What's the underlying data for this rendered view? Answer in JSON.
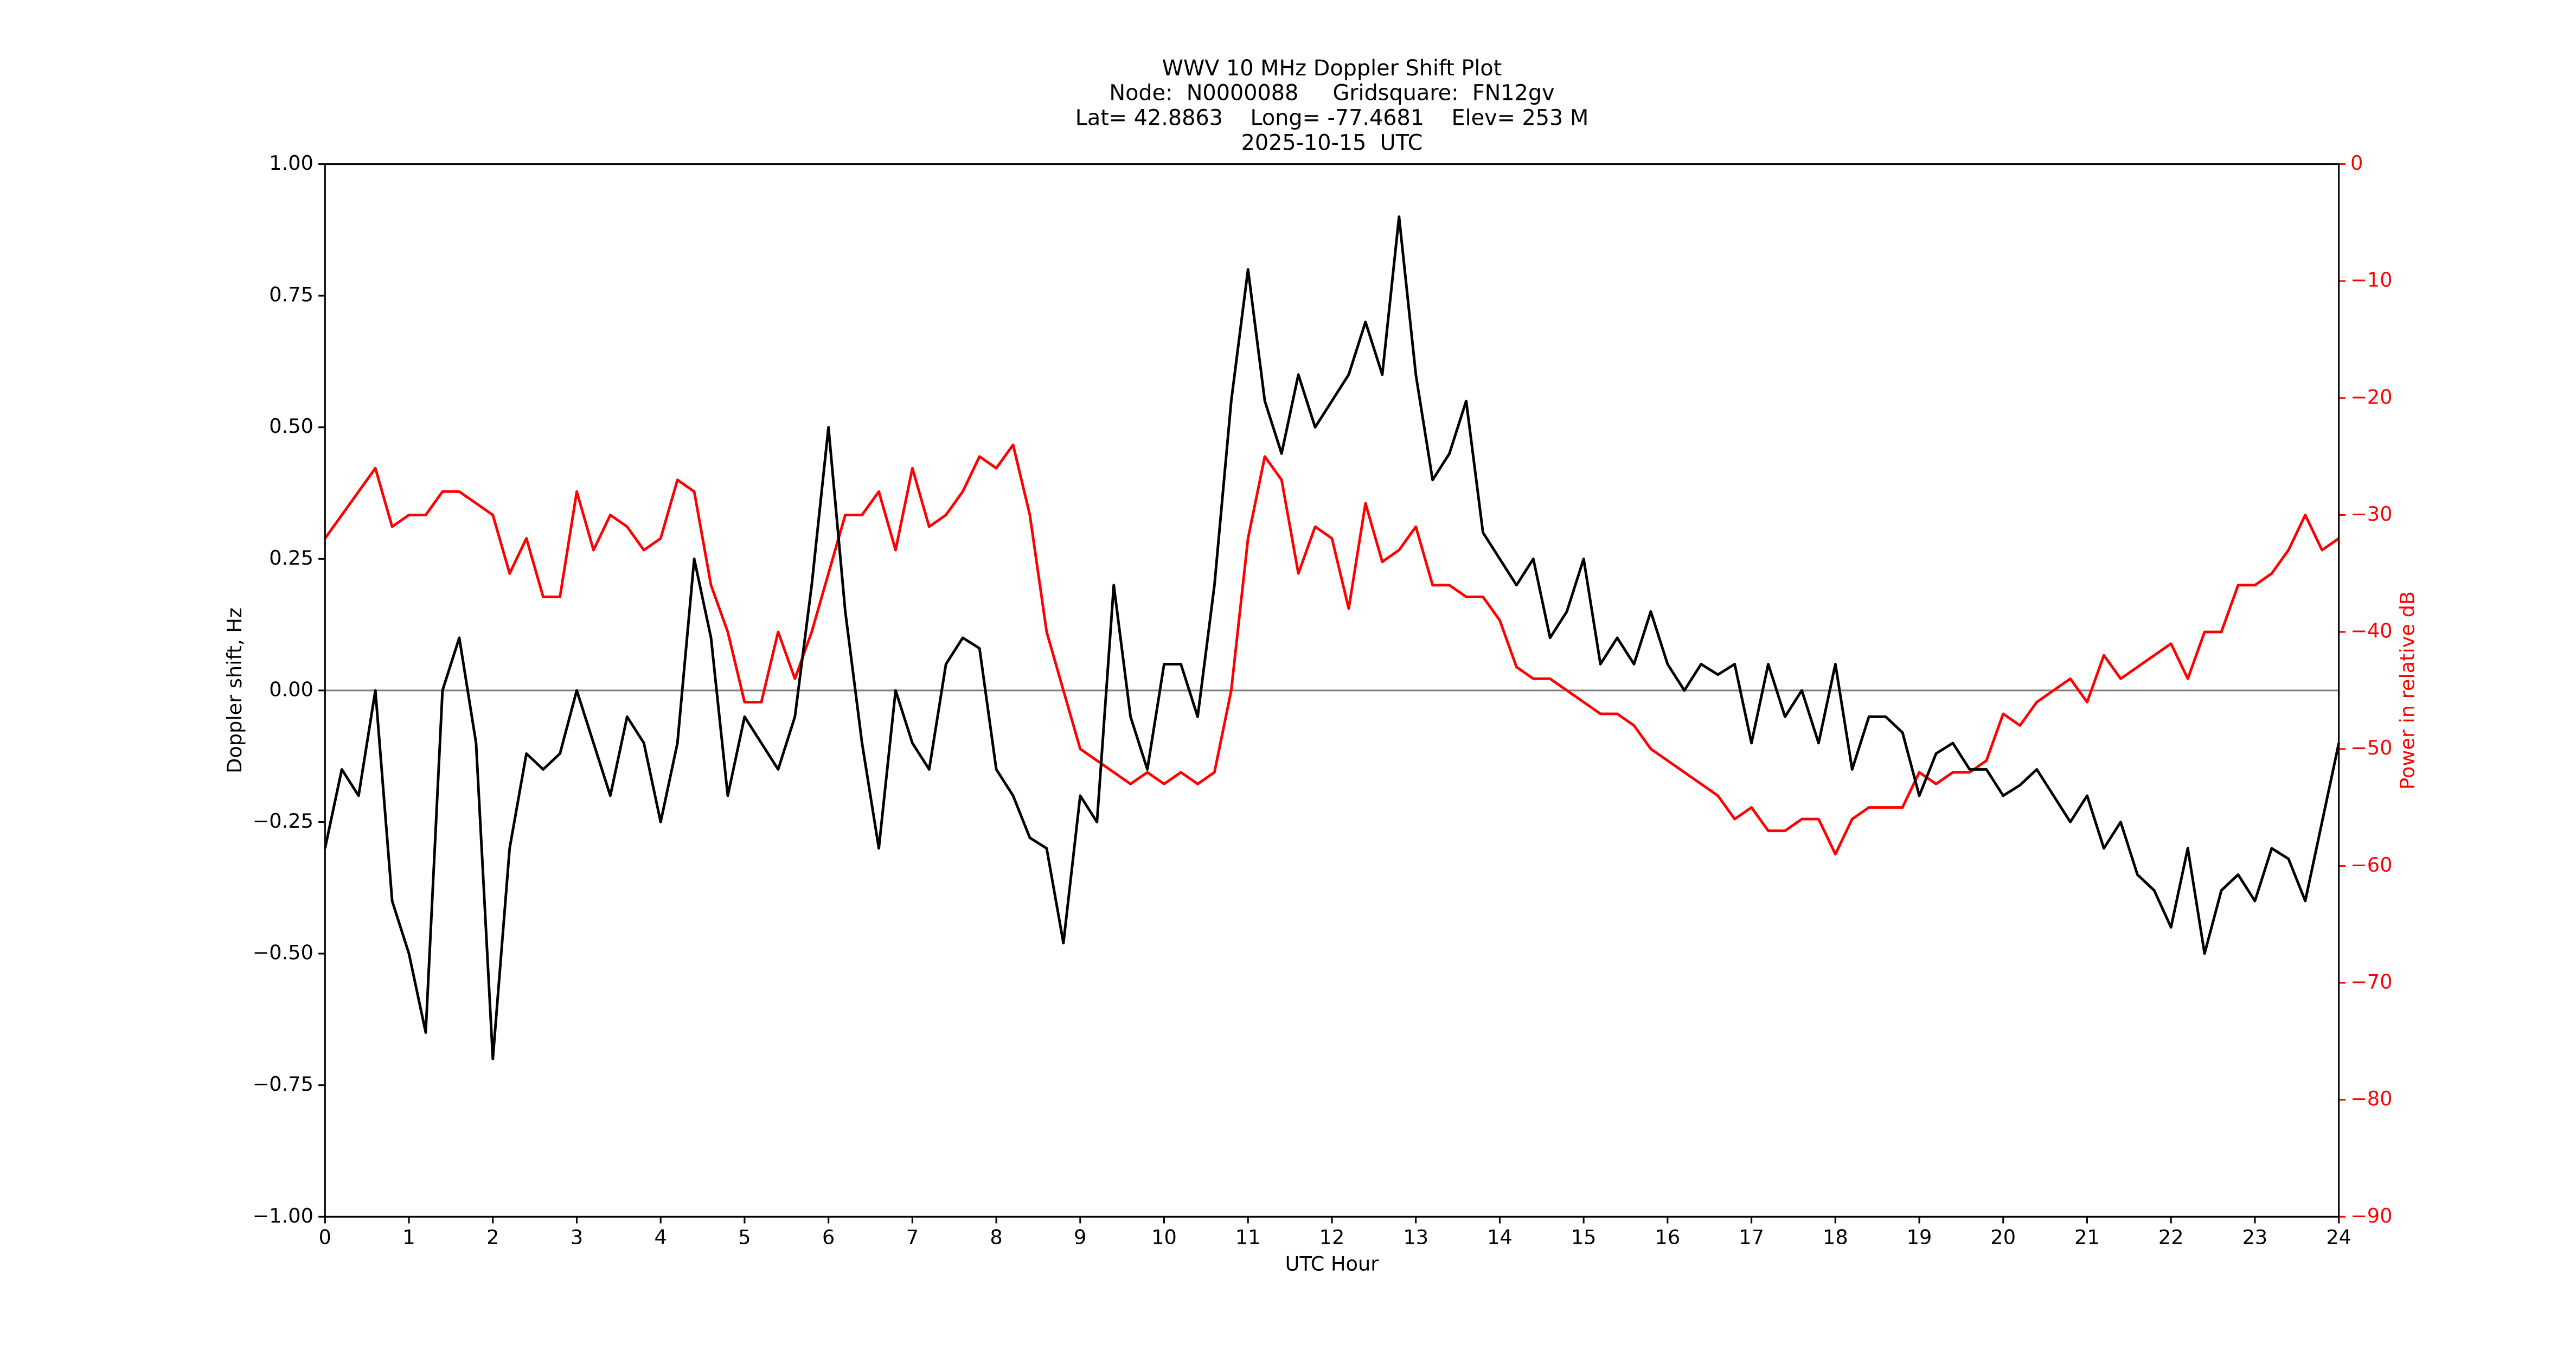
{
  "chart_data": {
    "type": "line",
    "title": [
      "WWV 10 MHz Doppler Shift Plot",
      "Node:  N0000088     Gridsquare:  FN12gv",
      "Lat= 42.8863    Long= -77.4681    Elev= 253 M",
      "2025-10-15  UTC"
    ],
    "xlabel": "UTC Hour",
    "ylabel": "Doppler shift, Hz",
    "y2label": "Power in relative dB",
    "xlim": [
      0,
      24
    ],
    "xticks": [
      0,
      1,
      2,
      3,
      4,
      5,
      6,
      7,
      8,
      9,
      10,
      11,
      12,
      13,
      14,
      15,
      16,
      17,
      18,
      19,
      20,
      21,
      22,
      23,
      24
    ],
    "ylim": [
      -1,
      1
    ],
    "yticks": [
      {
        "value": -1,
        "label": "−1.00"
      },
      {
        "value": -0.75,
        "label": "−0.75"
      },
      {
        "value": -0.5,
        "label": "−0.50"
      },
      {
        "value": -0.25,
        "label": "−0.25"
      },
      {
        "value": 0,
        "label": "0.00"
      },
      {
        "value": 0.25,
        "label": "0.25"
      },
      {
        "value": 0.5,
        "label": "0.50"
      },
      {
        "value": 0.75,
        "label": "0.75"
      },
      {
        "value": 1,
        "label": "1.00"
      }
    ],
    "y2lim": [
      -90,
      0
    ],
    "y2ticks": [
      {
        "value": -90,
        "label": "−90"
      },
      {
        "value": -80,
        "label": "−80"
      },
      {
        "value": -70,
        "label": "−70"
      },
      {
        "value": -60,
        "label": "−60"
      },
      {
        "value": -50,
        "label": "−50"
      },
      {
        "value": -40,
        "label": "−40"
      },
      {
        "value": -30,
        "label": "−30"
      },
      {
        "value": -20,
        "label": "−20"
      },
      {
        "value": -10,
        "label": "−10"
      },
      0
    ],
    "y2color": "#ff0000",
    "hline": 0,
    "x": [
      0,
      0.2,
      0.4,
      0.6,
      0.8,
      1,
      1.2,
      1.4,
      1.6,
      1.8,
      2,
      2.2,
      2.4,
      2.6,
      2.8,
      3,
      3.2,
      3.4,
      3.6,
      3.8,
      4,
      4.2,
      4.4,
      4.6,
      4.8,
      5,
      5.2,
      5.4,
      5.6,
      5.8,
      6,
      6.2,
      6.4,
      6.6,
      6.8,
      7,
      7.2,
      7.4,
      7.6,
      7.8,
      8,
      8.2,
      8.4,
      8.6,
      8.8,
      9,
      9.2,
      9.4,
      9.6,
      9.8,
      10,
      10.2,
      10.4,
      10.6,
      10.8,
      11,
      11.2,
      11.4,
      11.6,
      11.8,
      12,
      12.2,
      12.4,
      12.6,
      12.8,
      13,
      13.2,
      13.4,
      13.6,
      13.8,
      14,
      14.2,
      14.4,
      14.6,
      14.8,
      15,
      15.2,
      15.4,
      15.6,
      15.8,
      16,
      16.2,
      16.4,
      16.6,
      16.8,
      17,
      17.2,
      17.4,
      17.6,
      17.8,
      18,
      18.2,
      18.4,
      18.6,
      18.8,
      19,
      19.2,
      19.4,
      19.6,
      19.8,
      20,
      20.2,
      20.4,
      20.6,
      20.8,
      21,
      21.2,
      21.4,
      21.6,
      21.8,
      22,
      22.2,
      22.4,
      22.6,
      22.8,
      23,
      23.2,
      23.4,
      23.6,
      23.8,
      24
    ],
    "series": [
      {
        "color": "#000000",
        "values": [
          -0.3,
          -0.15,
          -0.2,
          0,
          -0.4,
          -0.5,
          -0.65,
          0,
          0.1,
          -0.1,
          -0.7,
          -0.3,
          -0.12,
          -0.15,
          -0.12,
          0,
          -0.1,
          -0.2,
          -0.05,
          -0.1,
          -0.25,
          -0.1,
          0.25,
          0.1,
          -0.2,
          -0.05,
          -0.1,
          -0.15,
          -0.05,
          0.2,
          0.5,
          0.15,
          -0.1,
          -0.3,
          0,
          -0.1,
          -0.15,
          0.05,
          0.1,
          0.08,
          -0.15,
          -0.2,
          -0.28,
          -0.3,
          -0.48,
          -0.2,
          -0.25,
          0.2,
          -0.05,
          -0.15,
          0.05,
          0.05,
          -0.05,
          0.2,
          0.55,
          0.8,
          0.55,
          0.45,
          0.6,
          0.5,
          0.55,
          0.6,
          0.7,
          0.6,
          0.9,
          0.6,
          0.4,
          0.45,
          0.55,
          0.3,
          0.25,
          0.2,
          0.25,
          0.1,
          0.15,
          0.25,
          0.05,
          0.1,
          0.05,
          0.15,
          0.05,
          0,
          0.05,
          0.03,
          0.05,
          -0.1,
          0.05,
          -0.05,
          0,
          -0.1,
          0.05,
          -0.15,
          -0.05,
          -0.05,
          -0.08,
          -0.2,
          -0.12,
          -0.1,
          -0.15,
          -0.15,
          -0.2,
          -0.18,
          -0.15,
          -0.2,
          -0.25,
          -0.2,
          -0.3,
          -0.25,
          -0.35,
          -0.38,
          -0.45,
          -0.3,
          -0.5,
          -0.38,
          -0.35,
          -0.4,
          -0.3,
          -0.32,
          -0.4,
          -0.25,
          -0.1
        ]
      },
      {
        "color": "#ff0000",
        "axis": "y2",
        "values": [
          -32,
          -30,
          -28,
          -26,
          -31,
          -30,
          -30,
          -28,
          -28,
          -29,
          -30,
          -35,
          -32,
          -37,
          -37,
          -28,
          -33,
          -30,
          -31,
          -33,
          -32,
          -27,
          -28,
          -36,
          -40,
          -46,
          -46,
          -40,
          -44,
          -40,
          -35,
          -30,
          -30,
          -28,
          -33,
          -26,
          -31,
          -30,
          -28,
          -25,
          -26,
          -24,
          -30,
          -40,
          -45,
          -50,
          -51,
          -52,
          -53,
          -52,
          -53,
          -52,
          -53,
          -52,
          -45,
          -32,
          -25,
          -27,
          -35,
          -31,
          -32,
          -38,
          -29,
          -34,
          -33,
          -31,
          -36,
          -36,
          -37,
          -37,
          -39,
          -43,
          -44,
          -44,
          -45,
          -46,
          -47,
          -47,
          -48,
          -50,
          -51,
          -52,
          -53,
          -54,
          -56,
          -55,
          -57,
          -57,
          -56,
          -56,
          -59,
          -56,
          -55,
          -55,
          -55,
          -52,
          -53,
          -52,
          -52,
          -51,
          -47,
          -48,
          -46,
          -45,
          -44,
          -46,
          -42,
          -44,
          -43,
          -42,
          -41,
          -44,
          -40,
          -40,
          -36,
          -36,
          -35,
          -33,
          -30,
          -33,
          -32
        ]
      }
    ]
  }
}
